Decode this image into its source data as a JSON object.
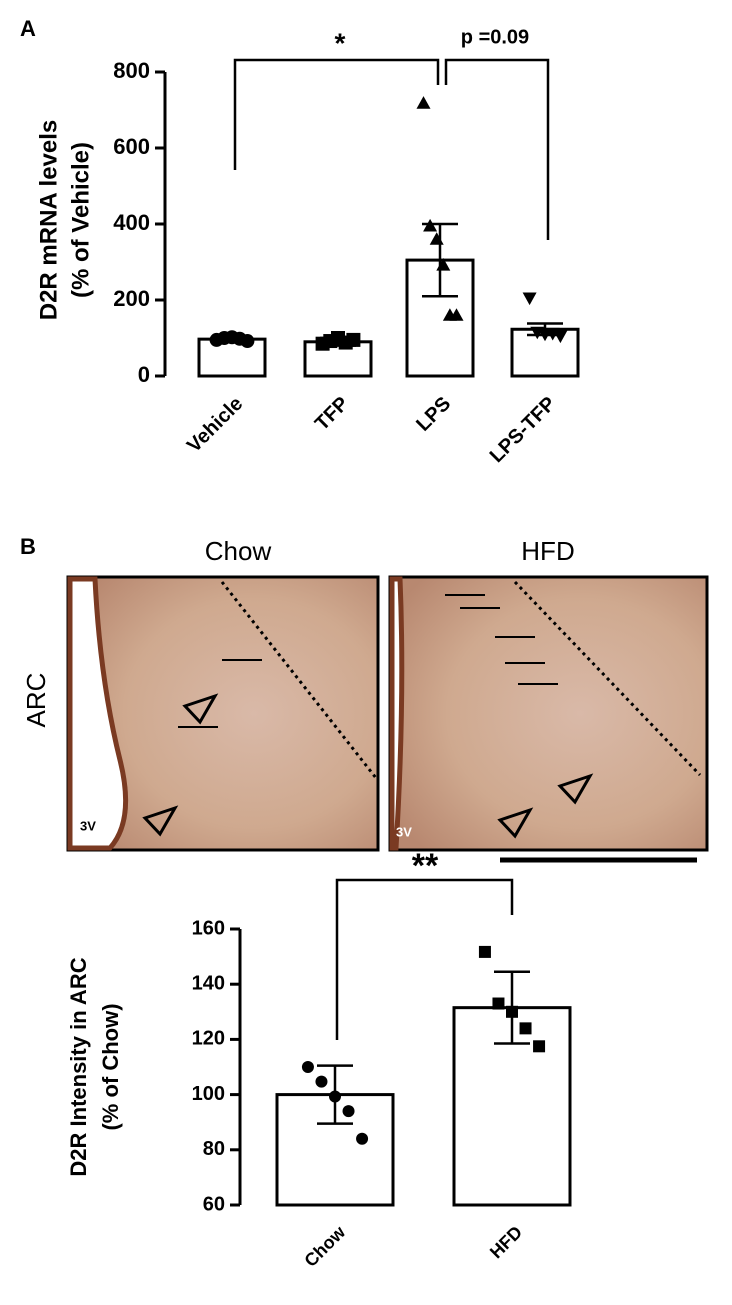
{
  "chart_data": [
    {
      "type": "bar",
      "panel": "A",
      "ylabel": [
        "D2R mRNA levels",
        "(% of Vehicle)"
      ],
      "categories": [
        "Vehicle",
        "TFP",
        "LPS",
        "LPS-TFP"
      ],
      "values": [
        97,
        90,
        305,
        123
      ],
      "errors": [
        5,
        10,
        95,
        15
      ],
      "points": [
        [
          95,
          100,
          102,
          98,
          92
        ],
        [
          85,
          92,
          100,
          88,
          95
        ],
        [
          718,
          395,
          360,
          292,
          160,
          160
        ],
        [
          205,
          115,
          110,
          112,
          105
        ]
      ],
      "markers": [
        "circle",
        "square",
        "triangle",
        "triangle-down"
      ],
      "annotations": [
        "*",
        "p =0.09"
      ],
      "ylim": [
        0,
        800
      ],
      "yticks": [
        0,
        200,
        400,
        600,
        800
      ],
      "color": "#ffffff"
    },
    {
      "type": "bar",
      "panel": "B",
      "ylabel": [
        "D2R Intensity in ARC",
        "(% of Chow)"
      ],
      "categories": [
        "Chow",
        "HFD"
      ],
      "values": [
        100,
        131.5
      ],
      "errors": [
        10.5,
        13
      ],
      "points": [
        [
          110,
          104.7,
          99.3,
          94,
          84
        ],
        [
          151.7,
          133,
          130,
          124,
          117.5
        ]
      ],
      "markers": [
        "circle",
        "square"
      ],
      "annotations": [
        "**"
      ],
      "ylim": [
        60,
        160
      ],
      "yticks": [
        60,
        80,
        100,
        120,
        140,
        160
      ],
      "color": "#ffffff"
    }
  ],
  "images": {
    "titles": [
      "Chow",
      "HFD"
    ],
    "row_label": "ARC",
    "region_labels": [
      "3V",
      "3V"
    ]
  }
}
